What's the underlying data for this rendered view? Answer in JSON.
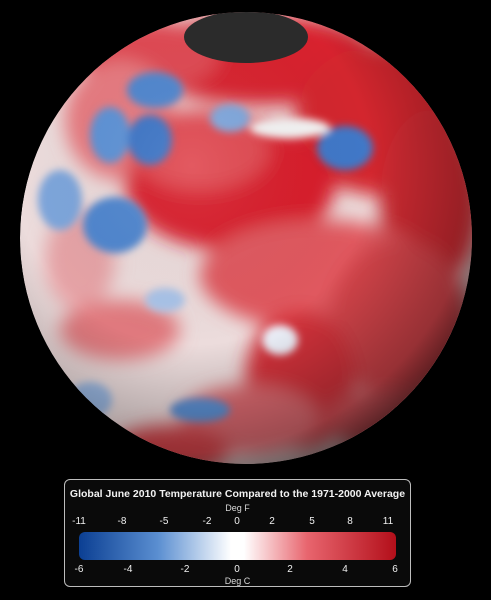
{
  "legend": {
    "title": "Global June 2010 Temperature Compared to the 1971-2000 Average",
    "unit_top": "Deg F",
    "unit_bottom": "Deg C",
    "fahrenheit_ticks": [
      "-11",
      "-8",
      "-5",
      "-2",
      "0",
      "2",
      "5",
      "8",
      "11"
    ],
    "celsius_ticks": [
      "-6",
      "-4",
      "-2",
      "0",
      "2",
      "4",
      "6"
    ],
    "colors": {
      "cold": "#0b3f93",
      "mid_cold": "#5b8fd1",
      "neutral": "#ffffff",
      "mid_warm": "#e8656e",
      "warm": "#b30f1a"
    }
  },
  "map": {
    "background": "#000000",
    "pole_cap_color": "#2b2b2b"
  }
}
